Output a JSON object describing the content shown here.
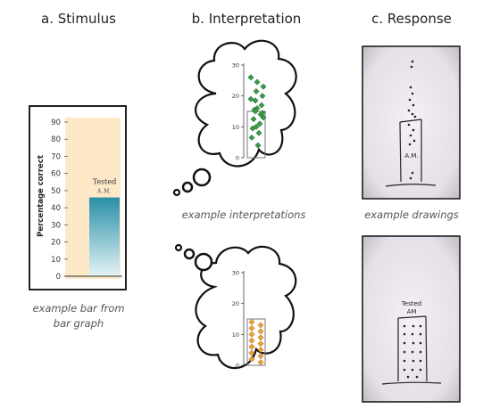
{
  "columns": {
    "stimulus": "a. Stimulus",
    "interpretation": "b. Interpretation",
    "response": "c. Response"
  },
  "captions": {
    "stimulus_line1": "example bar from",
    "stimulus_line2": "bar graph",
    "interpretations": "example interpretations",
    "drawings": "example drawings"
  },
  "stimulus_chart": {
    "ylabel": "Percentage correct",
    "ticks": [
      "0",
      "10",
      "20",
      "30",
      "40",
      "50",
      "60",
      "70",
      "80",
      "90"
    ],
    "bar_label": "Tested",
    "bar_sublabel": "A.M.",
    "bar_value": 46,
    "ymax": 90,
    "colors": {
      "panel": "#fde9c8",
      "bar_top": "#2a8fa6",
      "bar_bottom": "#e3f3f6"
    }
  },
  "interpretation_top": {
    "ticks": [
      "0",
      "10",
      "20",
      "30"
    ],
    "box_value": 15,
    "ymax": 30,
    "marker_color": "#3a9a4a",
    "points": [
      26,
      24.5,
      23,
      21.5,
      20,
      18.5,
      17,
      15.5,
      14,
      12.5,
      11,
      9.5,
      8,
      6.5,
      4,
      19,
      16,
      13,
      10,
      14.5,
      15
    ]
  },
  "interpretation_bottom": {
    "ticks": [
      "0",
      "10",
      "20",
      "30"
    ],
    "box_value": 15,
    "ymax": 30,
    "marker_color": "#e8a13b",
    "points": [
      14,
      13,
      12,
      11,
      10,
      9,
      8,
      7,
      6,
      5,
      4,
      3,
      2,
      1
    ]
  },
  "response_top": {
    "handwriting": "A.M."
  },
  "response_bottom": {
    "handwriting_line1": "Tested",
    "handwriting_line2": "AM"
  }
}
